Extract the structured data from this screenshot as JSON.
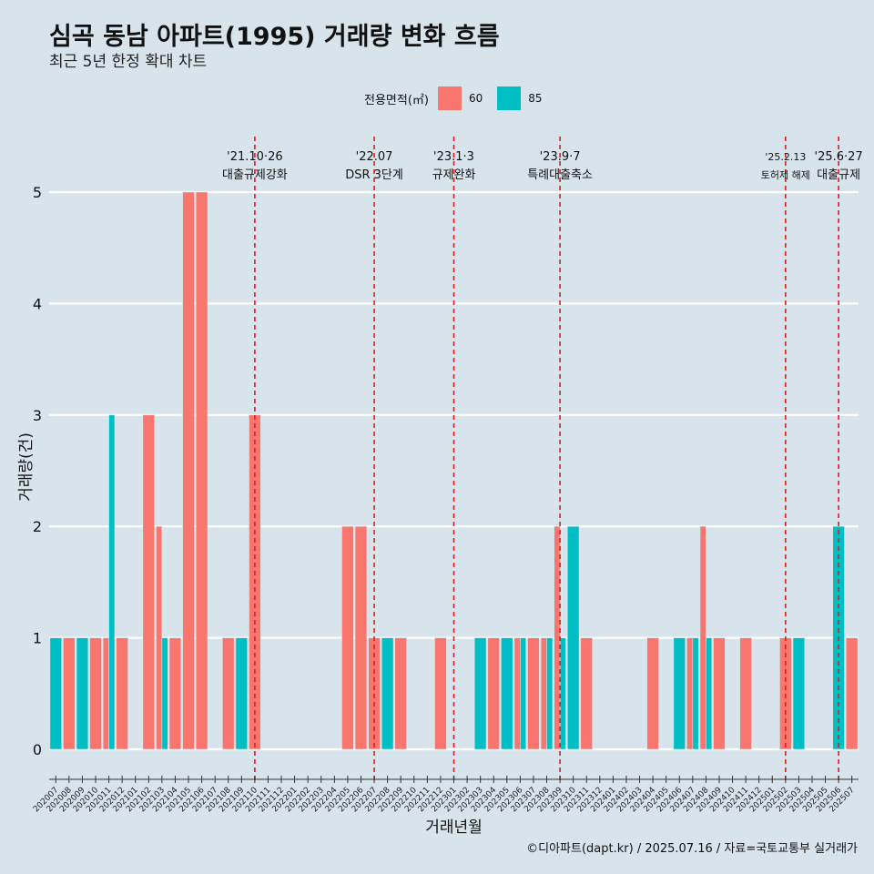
{
  "header": {
    "title": "심곡 동남 아파트(1995) 거래량 변화 흐름",
    "subtitle": "최근 5년 한정 확대 차트"
  },
  "legend": {
    "title": "전용면적(㎡)",
    "items": [
      {
        "label": "60",
        "color": "#f8766d"
      },
      {
        "label": "85",
        "color": "#00bfc4"
      }
    ]
  },
  "caption": "©디아파트(dapt.kr) / 2025.07.16 / 자료=국토교통부 실거래가",
  "chart_data": {
    "type": "bar",
    "xlabel": "거래년월",
    "ylabel": "거래량(건)",
    "ylim": [
      0,
      5
    ],
    "yticks": [
      0,
      1,
      2,
      3,
      4,
      5
    ],
    "grid": true,
    "legend_position": "top",
    "categories": [
      "202007",
      "202008",
      "202009",
      "202010",
      "202011",
      "202012",
      "202101",
      "202102",
      "202103",
      "202104",
      "202105",
      "202106",
      "202107",
      "202108",
      "202109",
      "202110",
      "202111",
      "202112",
      "202201",
      "202202",
      "202203",
      "202204",
      "202205",
      "202206",
      "202207",
      "202208",
      "202209",
      "202210",
      "202211",
      "202212",
      "202301",
      "202302",
      "202303",
      "202304",
      "202305",
      "202306",
      "202307",
      "202308",
      "202309",
      "202310",
      "202311",
      "202312",
      "202401",
      "202402",
      "202403",
      "202404",
      "202405",
      "202406",
      "202407",
      "202408",
      "202409",
      "202410",
      "202411",
      "202412",
      "202501",
      "202502",
      "202503",
      "202504",
      "202505",
      "202506",
      "202507"
    ],
    "series": [
      {
        "name": "60",
        "color": "#f8766d",
        "values": [
          0,
          1,
          0,
          1,
          1,
          1,
          0,
          3,
          2,
          1,
          5,
          5,
          0,
          1,
          0,
          3,
          0,
          0,
          0,
          0,
          0,
          0,
          2,
          2,
          1,
          0,
          1,
          0,
          0,
          1,
          0,
          0,
          0,
          1,
          0,
          1,
          1,
          1,
          2,
          0,
          1,
          0,
          0,
          0,
          0,
          1,
          0,
          0,
          1,
          2,
          1,
          0,
          1,
          0,
          0,
          1,
          0,
          0,
          0,
          0,
          1
        ]
      },
      {
        "name": "85",
        "color": "#00bfc4",
        "values": [
          1,
          0,
          1,
          0,
          3,
          0,
          0,
          0,
          1,
          0,
          0,
          0,
          0,
          0,
          1,
          0,
          0,
          0,
          0,
          0,
          0,
          0,
          0,
          0,
          0,
          1,
          0,
          0,
          0,
          0,
          0,
          0,
          1,
          0,
          1,
          1,
          0,
          1,
          1,
          2,
          0,
          0,
          0,
          0,
          0,
          0,
          0,
          1,
          1,
          1,
          0,
          0,
          0,
          0,
          0,
          0,
          1,
          0,
          0,
          2,
          0
        ]
      }
    ],
    "events": [
      {
        "date": "202110",
        "line1": "'21.10·26",
        "line2": "대출규제강화"
      },
      {
        "date": "202207",
        "line1": "'22.07",
        "line2": "DSR 3단계"
      },
      {
        "date": "202301",
        "line1": "'23.1·3",
        "line2": "규제완화"
      },
      {
        "date": "202309",
        "line1": "'23.9·7",
        "line2": "특례대출축소"
      },
      {
        "date": "202502",
        "line1": "'25.2.13",
        "line2": "토허제 해제"
      },
      {
        "date": "202506",
        "line1": "'25.6·27",
        "line2": "대출규제"
      }
    ]
  }
}
